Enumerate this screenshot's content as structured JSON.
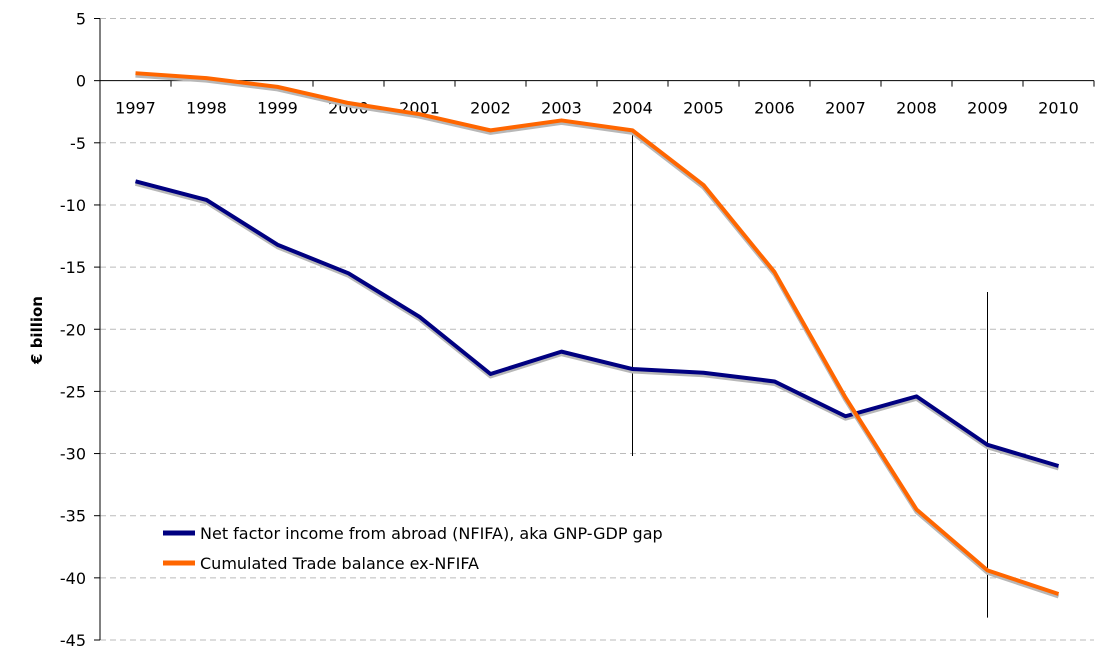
{
  "chart_data": {
    "type": "line",
    "title": "",
    "xlabel": "",
    "ylabel": "€ billion",
    "ylim": [
      -45,
      5
    ],
    "yticks": [
      5,
      0,
      -5,
      -10,
      -15,
      -20,
      -25,
      -30,
      -35,
      -40,
      -45
    ],
    "grid": true,
    "legend_position": "bottom-left",
    "categories": [
      "1997",
      "1998",
      "1999",
      "2000",
      "2001",
      "2002",
      "2003",
      "2004",
      "2005",
      "2006",
      "2007",
      "2008",
      "2009",
      "2010"
    ],
    "series": [
      {
        "name": "Net factor income from abroad (NFIFA), aka GNP-GDP gap",
        "color": "#000080",
        "values": [
          -8.1,
          -9.6,
          -13.2,
          -15.5,
          -19.0,
          -23.6,
          -21.8,
          -23.2,
          -23.5,
          -24.2,
          -27.0,
          -25.4,
          -29.3,
          -31.0
        ]
      },
      {
        "name": "Cumulated Trade balance ex-NFIFA",
        "color": "#FF6600",
        "values": [
          0.6,
          0.2,
          -0.5,
          -1.8,
          -2.7,
          -4.0,
          -3.2,
          -4.0,
          -8.4,
          -15.4,
          -25.5,
          -34.5,
          -39.4,
          -41.3
        ]
      }
    ],
    "annotations": [
      {
        "type": "vertical-line",
        "category": "2004",
        "from": -4.0,
        "to": -30.2
      },
      {
        "type": "vertical-line",
        "category": "2009",
        "from": -17.0,
        "to": -43.2
      }
    ]
  }
}
